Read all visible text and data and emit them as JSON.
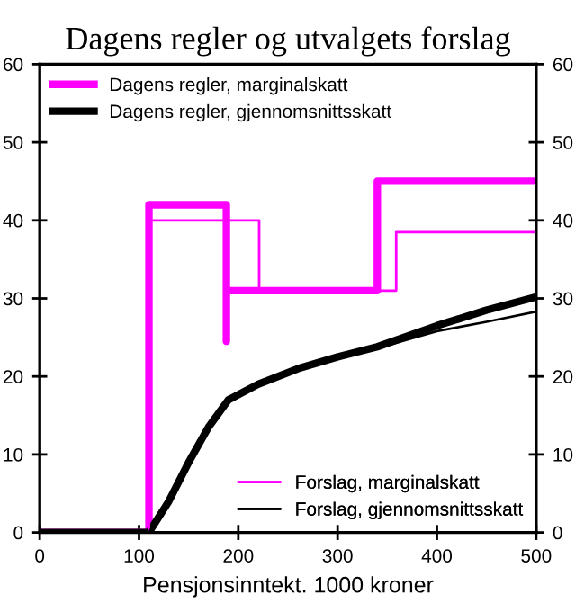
{
  "chart_data": {
    "type": "line",
    "title": "Dagens regler og utvalgets forslag",
    "xlabel": "Pensjonsinntekt. 1000 kroner",
    "xlim": [
      0,
      500
    ],
    "xticks": [
      0,
      100,
      200,
      300,
      400,
      500
    ],
    "ylim": [
      0,
      60
    ],
    "yticks": [
      0,
      10,
      20,
      30,
      40,
      50,
      60
    ],
    "y2lim": [
      0,
      60
    ],
    "y2ticks": [
      0,
      10,
      20,
      30,
      40,
      50,
      60
    ],
    "grid": false,
    "legend": [
      "top left",
      "bottom right"
    ],
    "line_style": "solid",
    "marker": "none",
    "series": [
      {
        "name": "Dagens regler, marginalskatt",
        "color": "#ff00ff",
        "x": [
          0,
          110,
          110,
          188,
          188,
          188,
          340,
          340,
          500
        ],
        "values": [
          0,
          0,
          42,
          42,
          24.5,
          31,
          31,
          45,
          45
        ]
      },
      {
        "name": "Dagens regler, gjennomsnittsskatt",
        "color": "#000000",
        "x": [
          0,
          110,
          130,
          150,
          170,
          190,
          220,
          260,
          300,
          340,
          400,
          450,
          500
        ],
        "values": [
          0,
          0,
          4,
          9,
          13.5,
          17,
          19,
          21,
          22.5,
          23.8,
          26.5,
          28.5,
          30.2
        ]
      },
      {
        "name": "Forslag, marginalskatt",
        "color": "#ff00ff",
        "x": [
          0,
          110,
          110,
          221,
          221,
          359,
          359,
          500
        ],
        "values": [
          0,
          0,
          40,
          40,
          31,
          31,
          38.5,
          38.5
        ]
      },
      {
        "name": "Forslag, gjennomsnittsskatt",
        "color": "#000000",
        "x": [
          0,
          110,
          130,
          150,
          170,
          190,
          220,
          260,
          300,
          345,
          400,
          450,
          500
        ],
        "values": [
          0,
          0,
          4,
          9,
          13.5,
          17,
          19,
          21,
          22.5,
          23.8,
          25.8,
          27,
          28.3
        ]
      }
    ]
  }
}
